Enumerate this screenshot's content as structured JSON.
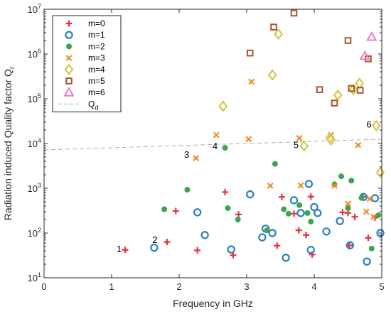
{
  "chart_data": {
    "type": "scatter",
    "xlabel": "Frequency in GHz",
    "ylabel": "Radiation induced Quality factor Q",
    "ylabel_subscript": "r",
    "xlim": [
      0,
      5
    ],
    "ylim": [
      10,
      10000000
    ],
    "yscale": "log",
    "grid": false,
    "legend_position": "top-left",
    "x_ticks": [
      0,
      1,
      2,
      3,
      4,
      5
    ],
    "x_tick_labels": [
      "0",
      "1",
      "2",
      "3",
      "4",
      "5"
    ],
    "y_ticks": [
      10,
      100,
      1000,
      10000,
      100000,
      1000000,
      10000000
    ],
    "y_tick_bases": [
      "10",
      "10",
      "10",
      "10",
      "10",
      "10",
      "10"
    ],
    "y_tick_exponents": [
      "1",
      "2",
      "3",
      "4",
      "5",
      "6",
      "7"
    ],
    "series": [
      {
        "name": "m=0",
        "marker": "plus",
        "color": "#e8313c",
        "points": [
          [
            1.2,
            42
          ],
          [
            1.82,
            63
          ],
          [
            1.95,
            310
          ],
          [
            2.27,
            41
          ],
          [
            2.68,
            820
          ],
          [
            2.8,
            32
          ],
          [
            2.88,
            260
          ],
          [
            3.45,
            52
          ],
          [
            3.52,
            640
          ],
          [
            3.7,
            270
          ],
          [
            3.77,
            115
          ],
          [
            3.88,
            90
          ],
          [
            3.95,
            650
          ],
          [
            3.97,
            33
          ],
          [
            4.42,
            290
          ],
          [
            4.5,
            280
          ],
          [
            4.52,
            53
          ],
          [
            4.6,
            230
          ],
          [
            4.72,
            650
          ],
          [
            4.8,
            78
          ],
          [
            4.9,
            220
          ]
        ]
      },
      {
        "name": "m=1",
        "marker": "circle",
        "color": "#2e7fc1",
        "points": [
          [
            1.63,
            47
          ],
          [
            2.27,
            290
          ],
          [
            2.38,
            90
          ],
          [
            2.77,
            43
          ],
          [
            3.05,
            730
          ],
          [
            3.23,
            80
          ],
          [
            3.28,
            125
          ],
          [
            3.38,
            100
          ],
          [
            3.58,
            28
          ],
          [
            3.7,
            540
          ],
          [
            3.8,
            280
          ],
          [
            3.92,
            1250
          ],
          [
            3.95,
            42
          ],
          [
            4.0,
            380
          ],
          [
            4.05,
            280
          ],
          [
            4.18,
            108
          ],
          [
            4.38,
            185
          ],
          [
            4.53,
            53
          ],
          [
            4.73,
            640
          ],
          [
            4.78,
            23
          ],
          [
            4.9,
            600
          ],
          [
            4.98,
            100
          ]
        ]
      },
      {
        "name": "m=2",
        "marker": "dot",
        "color": "#3aa64a",
        "points": [
          [
            1.78,
            340
          ],
          [
            2.12,
            930
          ],
          [
            2.68,
            8000
          ],
          [
            2.72,
            360
          ],
          [
            2.87,
            200
          ],
          [
            3.3,
            115
          ],
          [
            3.42,
            3500
          ],
          [
            3.55,
            340
          ],
          [
            3.62,
            270
          ],
          [
            3.78,
            420
          ],
          [
            3.9,
            280
          ],
          [
            3.95,
            180
          ],
          [
            4.3,
            1230
          ],
          [
            4.4,
            1850
          ],
          [
            4.5,
            360
          ],
          [
            4.55,
            1480
          ],
          [
            4.7,
            610
          ],
          [
            4.85,
            45
          ],
          [
            4.95,
            250
          ]
        ]
      },
      {
        "name": "m=3",
        "marker": "x",
        "color": "#f28a22",
        "points": [
          [
            2.25,
            4700
          ],
          [
            2.55,
            15500
          ],
          [
            3.03,
            12500
          ],
          [
            3.07,
            240000
          ],
          [
            3.35,
            1140
          ],
          [
            3.78,
            13200
          ],
          [
            3.8,
            1150
          ],
          [
            4.25,
            15500
          ],
          [
            4.3,
            1140
          ],
          [
            4.5,
            450
          ],
          [
            4.65,
            9200
          ],
          [
            4.77,
            300
          ],
          [
            4.82,
            580
          ],
          [
            4.88,
            230
          ]
        ]
      },
      {
        "name": "m=4",
        "marker": "diamond",
        "color": "#d4c23c",
        "points": [
          [
            2.65,
            68000
          ],
          [
            3.38,
            340000
          ],
          [
            3.47,
            2800000
          ],
          [
            3.85,
            8800
          ],
          [
            4.25,
            12000
          ],
          [
            4.23,
            13200
          ],
          [
            4.35,
            120000
          ],
          [
            4.58,
            160000
          ],
          [
            4.67,
            220000
          ],
          [
            4.92,
            25000
          ],
          [
            4.98,
            2250
          ]
        ]
      },
      {
        "name": "m=5",
        "marker": "square",
        "color": "#a5572f",
        "points": [
          [
            3.05,
            1050000
          ],
          [
            3.4,
            4000000
          ],
          [
            3.7,
            8200000
          ],
          [
            4.08,
            160000
          ],
          [
            4.3,
            80000
          ],
          [
            4.5,
            2000000
          ],
          [
            4.55,
            170000
          ],
          [
            4.68,
            155000
          ],
          [
            4.8,
            780000
          ]
        ]
      },
      {
        "name": "m=6",
        "marker": "triangle",
        "color": "#ec7cc8",
        "points": [
          [
            4.75,
            900000
          ],
          [
            4.85,
            2400000
          ]
        ]
      }
    ],
    "reference_line": {
      "name": "Q",
      "name_subscript": "d",
      "color": "#b0b0b0",
      "style": "dashed",
      "points": [
        [
          0,
          7200
        ],
        [
          5,
          12500
        ]
      ]
    },
    "annotations": [
      {
        "text": "1",
        "x": 1.15,
        "y": 42
      },
      {
        "text": "2",
        "x": 1.68,
        "y": 68
      },
      {
        "text": "3",
        "x": 2.15,
        "y": 5500
      },
      {
        "text": "4",
        "x": 2.57,
        "y": 8400
      },
      {
        "text": "5",
        "x": 3.77,
        "y": 9000
      },
      {
        "text": "6",
        "x": 4.85,
        "y": 26000
      }
    ]
  }
}
